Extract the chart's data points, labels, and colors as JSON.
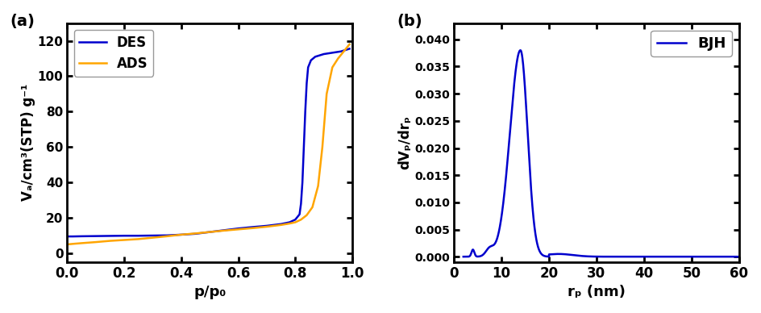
{
  "panel_a": {
    "label": "(a)",
    "xlabel": "p/p₀",
    "ylabel": "Vₐ/cm³(STP) g⁻¹",
    "xlim": [
      0.0,
      1.0
    ],
    "ylim": [
      -5,
      130
    ],
    "yticks": [
      0,
      20,
      40,
      60,
      80,
      100,
      120
    ],
    "xticks": [
      0.0,
      0.2,
      0.4,
      0.6,
      0.8,
      1.0
    ],
    "des_color": "#0000cd",
    "ads_color": "#ffa500",
    "legend_labels": [
      "DES",
      "ADS"
    ]
  },
  "panel_b": {
    "label": "(b)",
    "xlabel": "rₚ (nm)",
    "ylabel": "dVₚ/drₚ",
    "xlim": [
      0,
      60
    ],
    "ylim": [
      -0.001,
      0.043
    ],
    "yticks": [
      0.0,
      0.005,
      0.01,
      0.015,
      0.02,
      0.025,
      0.03,
      0.035,
      0.04
    ],
    "xticks": [
      0,
      10,
      20,
      30,
      40,
      50,
      60
    ],
    "bjh_color": "#0000cd",
    "legend_label": "BJH"
  },
  "figure_bgcolor": "#ffffff",
  "axes_linewidth": 2.0
}
